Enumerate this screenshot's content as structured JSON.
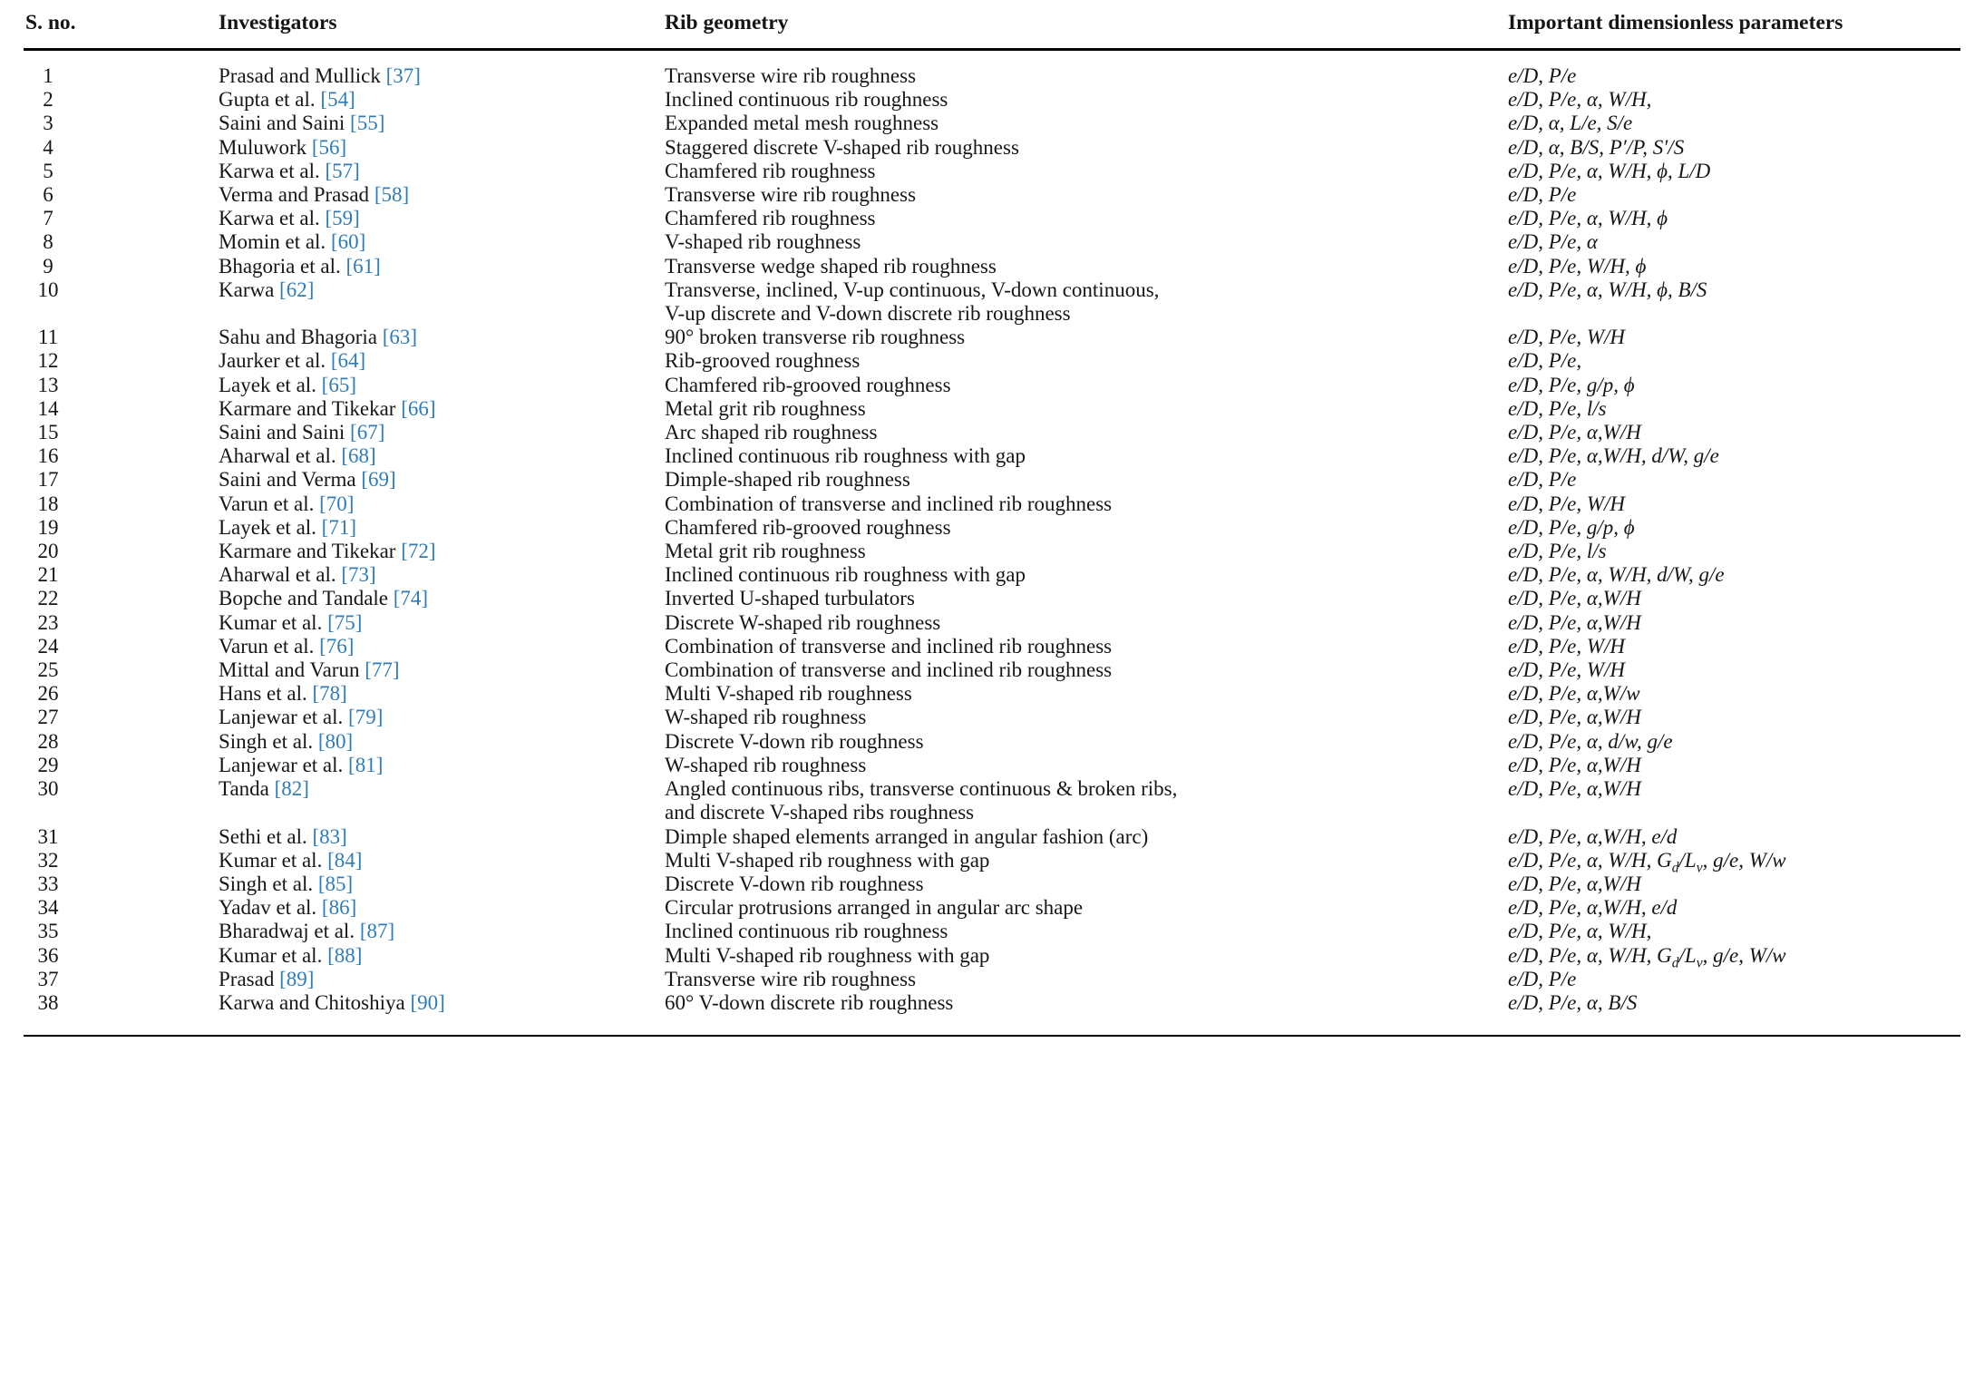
{
  "page": {
    "background": "#ffffff",
    "text_color": "#161616",
    "rule_color": "#000000",
    "link_color": "#2e7cb8"
  },
  "table": {
    "columns": [
      "S. no.",
      "Investigators",
      "Rib geometry",
      "Important dimensionless parameters"
    ],
    "rows": [
      {
        "sno": "1",
        "investigators": "Prasad and Mullick",
        "ref": "[37]",
        "rib_geometry": "Transverse wire rib roughness",
        "parameters": "e/D, P/e"
      },
      {
        "sno": "2",
        "investigators": "Gupta et al.",
        "ref": "[54]",
        "rib_geometry": "Inclined continuous rib roughness",
        "parameters": "e/D, P/e, α, W/H,"
      },
      {
        "sno": "3",
        "investigators": "Saini and Saini",
        "ref": "[55]",
        "rib_geometry": "Expanded metal mesh roughness",
        "parameters": "e/D, α, L/e, S/e"
      },
      {
        "sno": "4",
        "investigators": "Muluwork",
        "ref": "[56]",
        "rib_geometry": "Staggered discrete V-shaped rib roughness",
        "parameters": "e/D, α, B/S, P′/P, S′/S"
      },
      {
        "sno": "5",
        "investigators": "Karwa et al.",
        "ref": "[57]",
        "rib_geometry": "Chamfered rib roughness",
        "parameters": "e/D, P/e, α, W/H, ϕ, L/D"
      },
      {
        "sno": "6",
        "investigators": "Verma and Prasad",
        "ref": "[58]",
        "rib_geometry": "Transverse wire rib roughness",
        "parameters": "e/D, P/e"
      },
      {
        "sno": "7",
        "investigators": "Karwa et al.",
        "ref": "[59]",
        "rib_geometry": "Chamfered rib roughness",
        "parameters": "e/D, P/e, α, W/H, ϕ"
      },
      {
        "sno": "8",
        "investigators": "Momin et al.",
        "ref": "[60]",
        "rib_geometry": "V-shaped rib roughness",
        "parameters": "e/D, P/e, α"
      },
      {
        "sno": "9",
        "investigators": "Bhagoria et al.",
        "ref": "[61]",
        "rib_geometry": "Transverse wedge shaped rib roughness",
        "parameters": "e/D, P/e, W/H, ϕ"
      },
      {
        "sno": "10",
        "investigators": "Karwa",
        "ref": "[62]",
        "rib_geometry": "Transverse, inclined, V-up continuous, V-down continuous,\nV-up discrete and V-down discrete rib roughness",
        "parameters": "e/D, P/e, α, W/H, ϕ, B/S"
      },
      {
        "sno": "11",
        "investigators": "Sahu and Bhagoria",
        "ref": "[63]",
        "rib_geometry": "90° broken transverse rib roughness",
        "parameters": "e/D, P/e, W/H"
      },
      {
        "sno": "12",
        "investigators": "Jaurker et al.",
        "ref": "[64]",
        "rib_geometry": "Rib-grooved roughness",
        "parameters": "e/D, P/e,"
      },
      {
        "sno": "13",
        "investigators": "Layek et al.",
        "ref": "[65]",
        "rib_geometry": "Chamfered rib-grooved roughness",
        "parameters": "e/D, P/e, g/p, ϕ"
      },
      {
        "sno": "14",
        "investigators": "Karmare and Tikekar",
        "ref": "[66]",
        "rib_geometry": "Metal grit rib roughness",
        "parameters": "e/D, P/e, l/s"
      },
      {
        "sno": "15",
        "investigators": "Saini and Saini",
        "ref": "[67]",
        "rib_geometry": "Arc shaped rib roughness",
        "parameters": "e/D, P/e, α,W/H"
      },
      {
        "sno": "16",
        "investigators": "Aharwal et al.",
        "ref": "[68]",
        "rib_geometry": "Inclined continuous rib roughness with gap",
        "parameters": "e/D, P/e, α,W/H, d/W, g/e"
      },
      {
        "sno": "17",
        "investigators": "Saini and Verma",
        "ref": "[69]",
        "rib_geometry": "Dimple-shaped rib roughness",
        "parameters": "e/D, P/e"
      },
      {
        "sno": "18",
        "investigators": "Varun et al.",
        "ref": "[70]",
        "rib_geometry": "Combination of transverse and inclined rib roughness",
        "parameters": "e/D, P/e, W/H"
      },
      {
        "sno": "19",
        "investigators": "Layek et al.",
        "ref": "[71]",
        "rib_geometry": "Chamfered rib-grooved roughness",
        "parameters": "e/D, P/e, g/p, ϕ"
      },
      {
        "sno": "20",
        "investigators": "Karmare and Tikekar",
        "ref": "[72]",
        "rib_geometry": "Metal grit rib roughness",
        "parameters": "e/D, P/e, l/s"
      },
      {
        "sno": "21",
        "investigators": "Aharwal et al.",
        "ref": "[73]",
        "rib_geometry": "Inclined continuous rib roughness with gap",
        "parameters": "e/D, P/e, α, W/H, d/W, g/e"
      },
      {
        "sno": "22",
        "investigators": "Bopche and Tandale",
        "ref": "[74]",
        "rib_geometry": "Inverted U-shaped turbulators",
        "parameters": "e/D, P/e, α,W/H"
      },
      {
        "sno": "23",
        "investigators": "Kumar et al.",
        "ref": "[75]",
        "rib_geometry": "Discrete W-shaped rib roughness",
        "parameters": "e/D, P/e, α,W/H"
      },
      {
        "sno": "24",
        "investigators": "Varun et al.",
        "ref": "[76]",
        "rib_geometry": "Combination of transverse and inclined rib roughness",
        "parameters": "e/D, P/e, W/H"
      },
      {
        "sno": "25",
        "investigators": "Mittal and Varun",
        "ref": "[77]",
        "rib_geometry": "Combination of transverse and inclined rib roughness",
        "parameters": "e/D, P/e, W/H"
      },
      {
        "sno": "26",
        "investigators": "Hans et al.",
        "ref": "[78]",
        "rib_geometry": "Multi V-shaped rib roughness",
        "parameters": "e/D, P/e, α,W/w"
      },
      {
        "sno": "27",
        "investigators": "Lanjewar et al.",
        "ref": "[79]",
        "rib_geometry": "W-shaped rib roughness",
        "parameters": "e/D, P/e, α,W/H"
      },
      {
        "sno": "28",
        "investigators": "Singh et al.",
        "ref": "[80]",
        "rib_geometry": "Discrete V-down rib roughness",
        "parameters": "e/D, P/e, α, d/w, g/e"
      },
      {
        "sno": "29",
        "investigators": "Lanjewar et al.",
        "ref": "[81]",
        "rib_geometry": "W-shaped rib roughness",
        "parameters": "e/D, P/e, α,W/H"
      },
      {
        "sno": "30",
        "investigators": "Tanda",
        "ref": "[82]",
        "rib_geometry": "Angled continuous ribs, transverse continuous & broken ribs,\nand discrete V-shaped ribs roughness",
        "parameters": "e/D, P/e, α,W/H"
      },
      {
        "sno": "31",
        "investigators": "Sethi et al.",
        "ref": "[83]",
        "rib_geometry": "Dimple shaped elements arranged in angular fashion (arc)",
        "parameters": "e/D, P/e, α,W/H, e/d"
      },
      {
        "sno": "32",
        "investigators": "Kumar et al.",
        "ref": "[84]",
        "rib_geometry": "Multi V-shaped rib roughness with gap",
        "parameters": "e/D, P/e, α, W/H, G<sub>d</sub>/L<sub>v</sub>, g/e, W/w"
      },
      {
        "sno": "33",
        "investigators": "Singh et al.",
        "ref": "[85]",
        "rib_geometry": "Discrete V-down rib roughness",
        "parameters": "e/D, P/e, α,W/H"
      },
      {
        "sno": "34",
        "investigators": "Yadav et al.",
        "ref": "[86]",
        "rib_geometry": "Circular protrusions arranged in angular arc shape",
        "parameters": "e/D, P/e, α,W/H, e/d"
      },
      {
        "sno": "35",
        "investigators": "Bharadwaj et al.",
        "ref": "[87]",
        "rib_geometry": "Inclined continuous rib roughness",
        "parameters": "e/D, P/e, α, W/H,"
      },
      {
        "sno": "36",
        "investigators": "Kumar et al.",
        "ref": "[88]",
        "rib_geometry": "Multi V-shaped rib roughness with gap",
        "parameters": "e/D, P/e, α, W/H, G<sub>d</sub>/L<sub>v</sub>, g/e, W/w"
      },
      {
        "sno": "37",
        "investigators": "Prasad",
        "ref": "[89]",
        "rib_geometry": "Transverse wire rib roughness",
        "parameters": "e/D, P/e"
      },
      {
        "sno": "38",
        "investigators": "Karwa and Chitoshiya",
        "ref": "[90]",
        "rib_geometry": "60° V-down discrete rib roughness",
        "parameters": "e/D, P/e, α, B/S"
      }
    ]
  }
}
